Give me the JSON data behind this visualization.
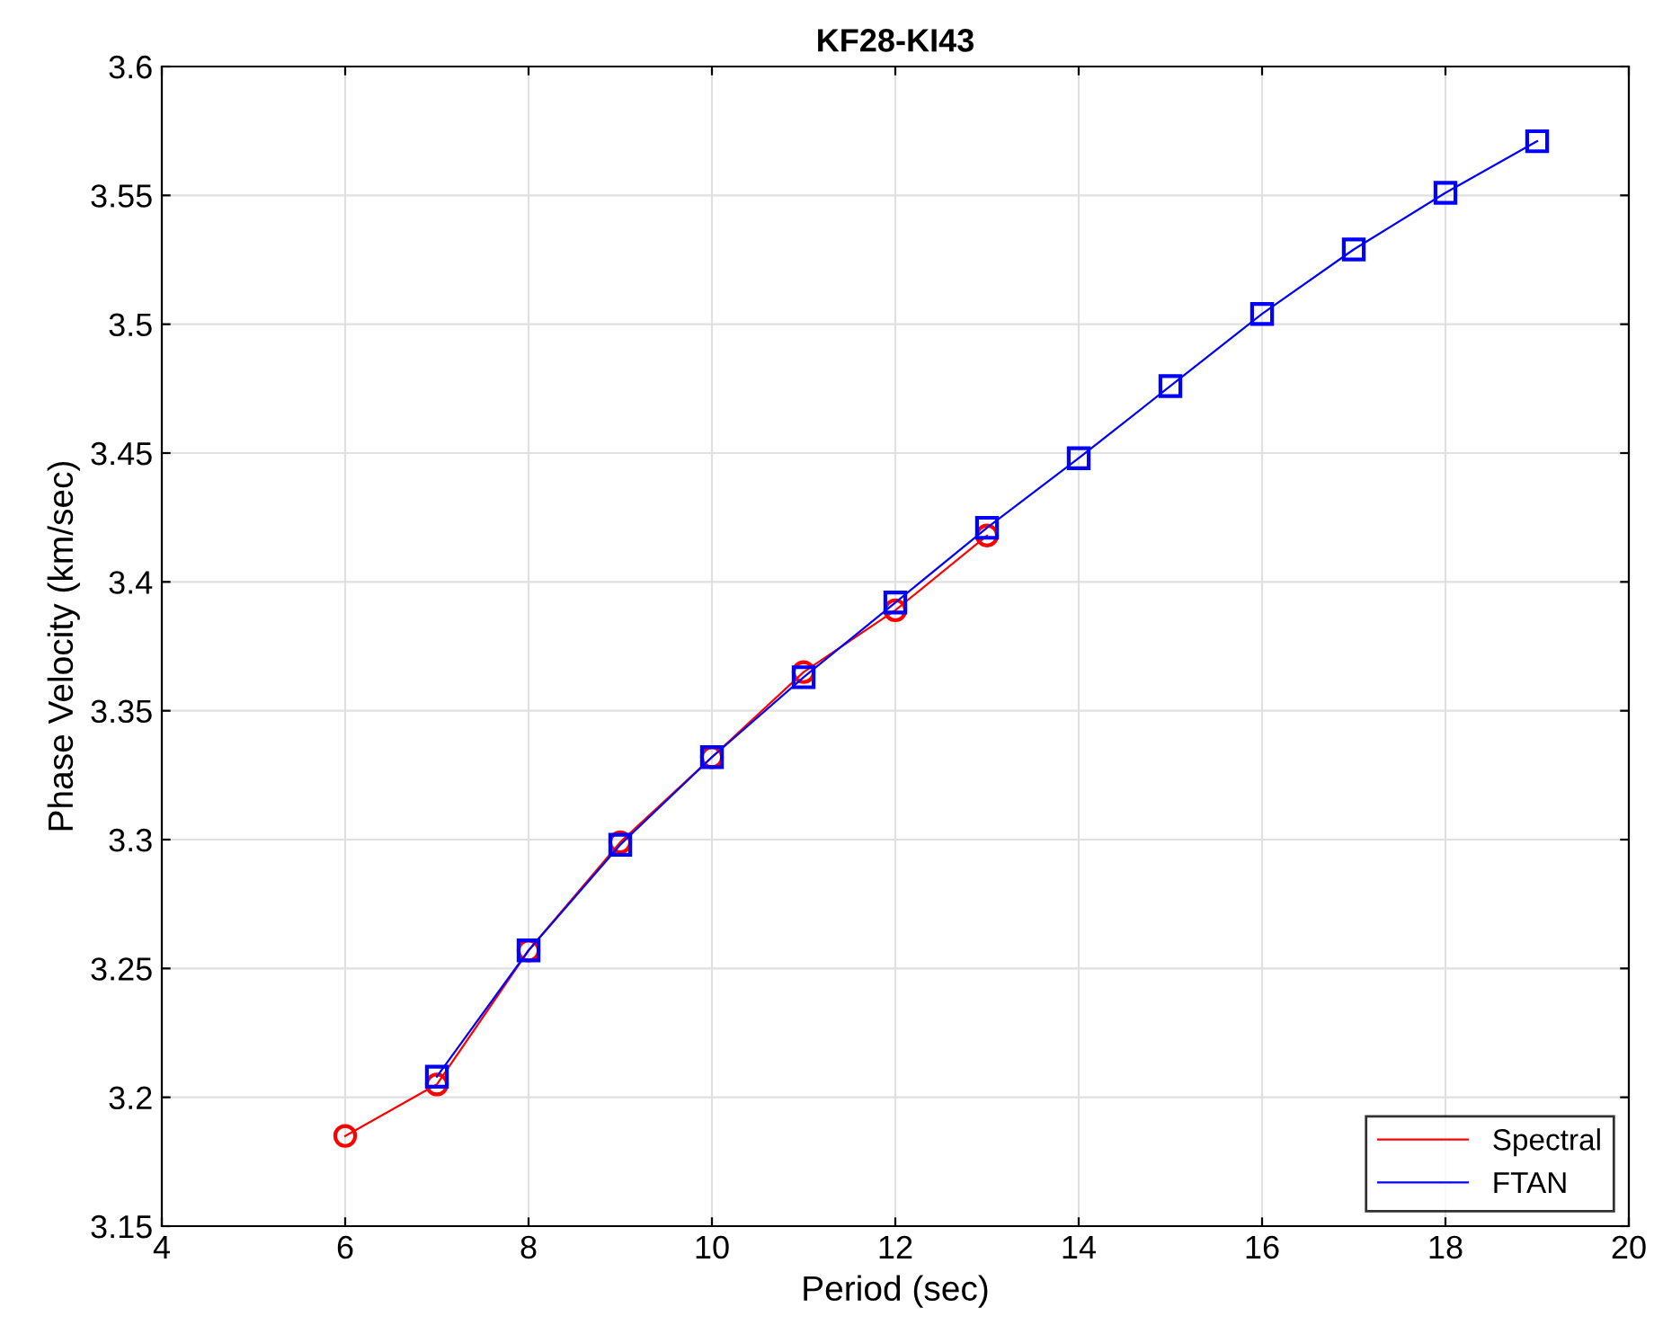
{
  "chart_data": {
    "type": "line",
    "title": "KF28-KI43",
    "xlabel": "Period (sec)",
    "ylabel": "Phase Velocity (km/sec)",
    "series": [
      {
        "name": "Spectral",
        "color": "#ff0000",
        "marker": "circle",
        "x": [
          6,
          7,
          8,
          9,
          10,
          11,
          12,
          13
        ],
        "values": [
          3.185,
          3.205,
          3.257,
          3.299,
          3.332,
          3.365,
          3.389,
          3.418
        ]
      },
      {
        "name": "FTAN",
        "color": "#0000ff",
        "marker": "square",
        "x": [
          7,
          8,
          9,
          10,
          11,
          12,
          13,
          14,
          15,
          16,
          17,
          18,
          19
        ],
        "values": [
          3.208,
          3.257,
          3.298,
          3.332,
          3.363,
          3.392,
          3.421,
          3.448,
          3.476,
          3.504,
          3.529,
          3.551,
          3.571
        ]
      }
    ],
    "xlim": [
      4,
      20
    ],
    "xticks": [
      4,
      6,
      8,
      10,
      12,
      14,
      16,
      18,
      20
    ],
    "ylim": [
      3.15,
      3.6
    ],
    "yticks": [
      3.15,
      3.2,
      3.25,
      3.3,
      3.35,
      3.4,
      3.45,
      3.5,
      3.55,
      3.6
    ],
    "grid": true,
    "legend": "bottom right"
  }
}
